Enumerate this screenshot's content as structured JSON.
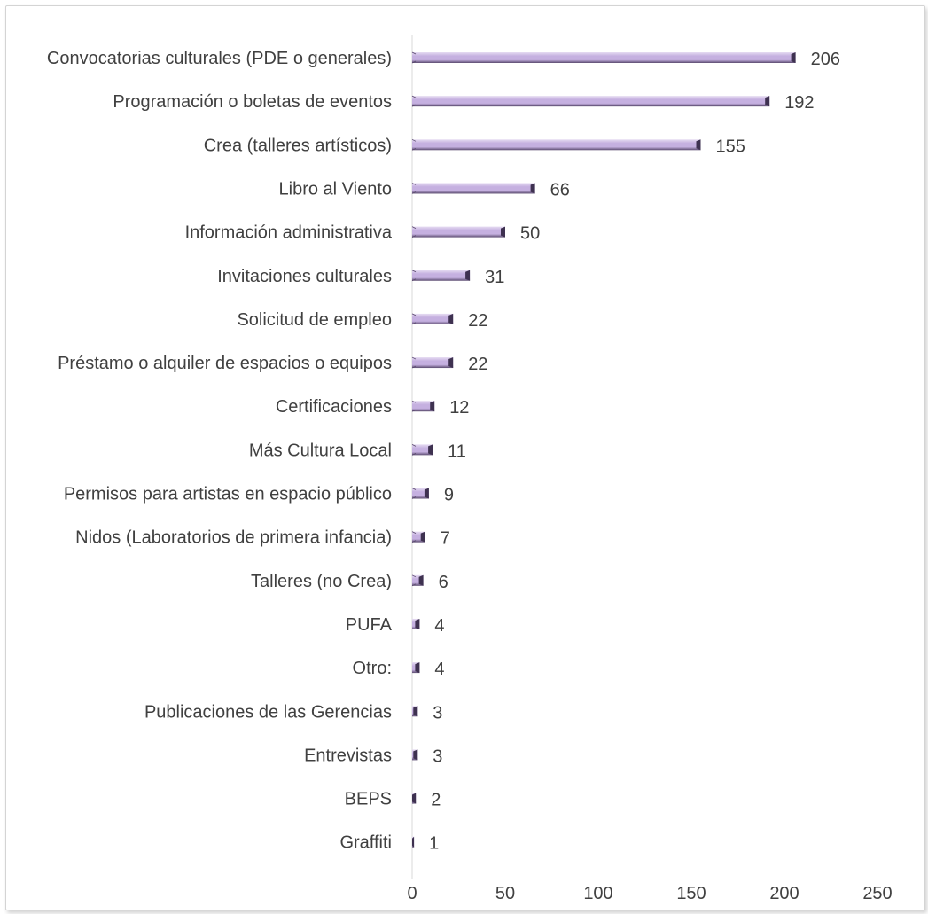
{
  "chart_data": {
    "type": "bar",
    "orientation": "horizontal",
    "categories": [
      "Convocatorias culturales (PDE o generales)",
      "Programación o boletas de eventos",
      "Crea (talleres artísticos)",
      "Libro al Viento",
      "Información administrativa",
      "Invitaciones culturales",
      "Solicitud de empleo",
      "Préstamo o alquiler de espacios o equipos",
      "Certificaciones",
      "Más Cultura Local",
      "Permisos para artistas en espacio público",
      "Nidos (Laboratorios de primera infancia)",
      "Talleres (no Crea)",
      "PUFA",
      "Otro:",
      "Publicaciones de las Gerencias",
      "Entrevistas",
      "BEPS",
      "Graffiti"
    ],
    "values": [
      206,
      192,
      155,
      66,
      50,
      31,
      22,
      22,
      12,
      11,
      9,
      7,
      6,
      4,
      4,
      3,
      3,
      2,
      1
    ],
    "data_labels": true,
    "xlim": [
      0,
      250
    ],
    "xticks": [
      0,
      50,
      100,
      150,
      200,
      250
    ],
    "grid": false,
    "legend": "none",
    "title": "",
    "xlabel": "",
    "ylabel": "",
    "colors": {
      "bar_fill": "#c5b0e0",
      "bar_highlight": "#e6dcf2",
      "bar_shadow": "#5a4a6e",
      "bar_end": "#3e3150",
      "axis": "#d9d9d9",
      "text": "#404040"
    }
  }
}
